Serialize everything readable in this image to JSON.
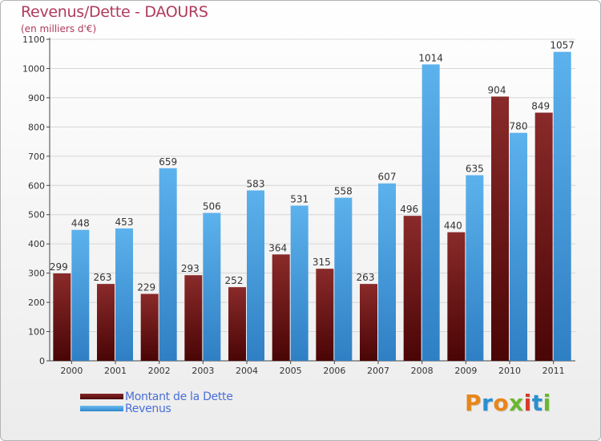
{
  "chart_data": {
    "type": "bar",
    "title": "Revenus/Dette - DAOURS",
    "subtitle": "(en milliers d'€)",
    "categories": [
      "2000",
      "2001",
      "2002",
      "2003",
      "2004",
      "2005",
      "2006",
      "2007",
      "2008",
      "2009",
      "2010",
      "2011"
    ],
    "series": [
      {
        "name": "Montant de la Dette",
        "color": "#7a1f1f",
        "values": [
          299,
          263,
          229,
          293,
          252,
          364,
          315,
          263,
          496,
          440,
          904,
          849
        ]
      },
      {
        "name": "Revenus",
        "color": "#4aa3e3",
        "values": [
          448,
          453,
          659,
          506,
          583,
          531,
          558,
          607,
          1014,
          635,
          780,
          1057
        ]
      }
    ],
    "ylim": [
      0,
      1100
    ],
    "yticks": [
      0,
      100,
      200,
      300,
      400,
      500,
      600,
      700,
      800,
      900,
      1000,
      1100
    ],
    "grid": true,
    "legend_position": "bottom-left"
  },
  "logo": {
    "letters": [
      "P",
      "r",
      "o",
      "x",
      "i",
      "t",
      "i"
    ],
    "colors": [
      "#e8861a",
      "#2a8fd0",
      "#e8861a",
      "#6ab82e",
      "#d83a2a",
      "#2a8fd0",
      "#6ab82e"
    ]
  }
}
